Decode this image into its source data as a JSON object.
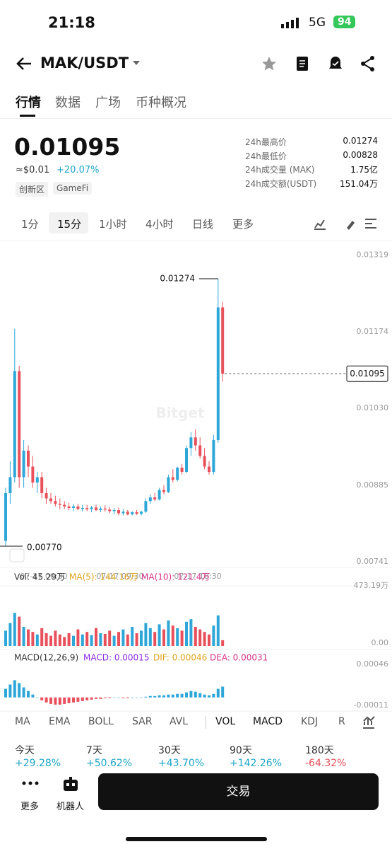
{
  "status": {
    "time": "21:18",
    "network": "5G",
    "battery": "94"
  },
  "header": {
    "pair": "MAK/USDT"
  },
  "tabs": [
    "行情",
    "数据",
    "广场",
    "币种概况"
  ],
  "price": {
    "usd": "≈$0.01",
    "change": "+20.07%",
    "tags": [
      "创新区",
      "GameFi"
    ]
  },
  "stats": [
    {
      "label": "24h最高价",
      "value": "0.01274"
    },
    {
      "label": "24h最低价",
      "value": "0.00828"
    },
    {
      "label": "24h成交量 (MAK)",
      "value": "1.75亿"
    },
    {
      "label": "24h成交额(USDT)",
      "value": "151.04万"
    }
  ],
  "intervals": [
    "1分",
    "15分",
    "1小时",
    "4小时",
    "日线",
    "更多"
  ],
  "chart_data": {
    "type": "candlestick",
    "up_color": "#2ea7d8",
    "down_color": "#e8505b",
    "last": 0.01095,
    "max": 0.01274,
    "min": {
      "value": 0.0077,
      "label": "0.00770"
    },
    "ylim": [
      0.0073,
      0.01346
    ],
    "yticks": [
      0.01319,
      0.01174,
      {
        "value": 0.0103,
        "label": "0.01030"
      },
      0.00885,
      0.00741
    ],
    "grid": false,
    "x_labels": [
      "07-17 00:30",
      "07-17 09:30",
      "07-17 18:30"
    ],
    "candles": [
      [
        0.0078,
        0.0088,
        0.0077,
        0.0087
      ],
      [
        0.0087,
        0.0093,
        0.0085,
        0.009
      ],
      [
        0.009,
        0.0118,
        0.0089,
        0.011
      ],
      [
        0.011,
        0.0111,
        0.0088,
        0.009
      ],
      [
        0.009,
        0.0097,
        0.0088,
        0.0095
      ],
      [
        0.0095,
        0.0096,
        0.009,
        0.0092
      ],
      [
        0.0092,
        0.0094,
        0.0088,
        0.0089
      ],
      [
        0.0089,
        0.0091,
        0.0087,
        0.009
      ],
      [
        0.009,
        0.0091,
        0.0086,
        0.0087
      ],
      [
        0.0087,
        0.0088,
        0.0085,
        0.0086
      ],
      [
        0.0086,
        0.0087,
        0.0085,
        0.00855
      ],
      [
        0.00855,
        0.00865,
        0.00845,
        0.0085
      ],
      [
        0.0085,
        0.0086,
        0.0084,
        0.00848
      ],
      [
        0.00848,
        0.00855,
        0.0084,
        0.00845
      ],
      [
        0.00845,
        0.00852,
        0.00838,
        0.00842
      ],
      [
        0.00842,
        0.0085,
        0.00836,
        0.00845
      ],
      [
        0.00845,
        0.0085,
        0.00838,
        0.0084
      ],
      [
        0.0084,
        0.00848,
        0.00835,
        0.00842
      ],
      [
        0.00842,
        0.00848,
        0.00836,
        0.0084
      ],
      [
        0.0084,
        0.00846,
        0.00834,
        0.00843
      ],
      [
        0.00843,
        0.00848,
        0.00836,
        0.00838
      ],
      [
        0.00838,
        0.00845,
        0.00834,
        0.00841
      ],
      [
        0.00841,
        0.00847,
        0.00835,
        0.00839
      ],
      [
        0.00839,
        0.00844,
        0.00832,
        0.00836
      ],
      [
        0.00836,
        0.00842,
        0.0083,
        0.00838
      ],
      [
        0.00838,
        0.00843,
        0.00828,
        0.00832
      ],
      [
        0.00832,
        0.0084,
        0.00828,
        0.00835
      ],
      [
        0.00835,
        0.00838,
        0.00828,
        0.0083
      ],
      [
        0.0083,
        0.00836,
        0.00828,
        0.00834
      ],
      [
        0.00834,
        0.00838,
        0.00829,
        0.00831
      ],
      [
        0.00831,
        0.00837,
        0.00828,
        0.00835
      ],
      [
        0.00835,
        0.0086,
        0.00833,
        0.00855
      ],
      [
        0.00855,
        0.00868,
        0.0085,
        0.00862
      ],
      [
        0.00862,
        0.0087,
        0.00855,
        0.00858
      ],
      [
        0.00858,
        0.0088,
        0.00856,
        0.00876
      ],
      [
        0.00876,
        0.00885,
        0.00868,
        0.00872
      ],
      [
        0.00872,
        0.00905,
        0.0087,
        0.009
      ],
      [
        0.009,
        0.00915,
        0.0089,
        0.00895
      ],
      [
        0.00895,
        0.0092,
        0.00892,
        0.00918
      ],
      [
        0.00918,
        0.00925,
        0.00905,
        0.0091
      ],
      [
        0.0091,
        0.0096,
        0.00908,
        0.00955
      ],
      [
        0.00955,
        0.00985,
        0.0094,
        0.00975
      ],
      [
        0.00975,
        0.0099,
        0.0095,
        0.0096
      ],
      [
        0.0096,
        0.00975,
        0.00935,
        0.0094
      ],
      [
        0.0094,
        0.00955,
        0.00915,
        0.0092
      ],
      [
        0.0092,
        0.0093,
        0.00905,
        0.0091
      ],
      [
        0.0091,
        0.0098,
        0.00905,
        0.0097
      ],
      [
        0.0097,
        0.01274,
        0.00965,
        0.0122
      ],
      [
        0.0122,
        0.0123,
        0.0108,
        0.01095
      ]
    ],
    "volume": {
      "legend": [
        "Vol: 45.29万",
        "MA(5): 144.16万",
        "MA(10): 121.4万"
      ],
      "ylim": [
        0,
        500
      ],
      "yticks": [
        {
          "value": 473.19,
          "label": "473.19万"
        },
        {
          "value": 0,
          "label": "0.00"
        }
      ],
      "values": [
        120,
        180,
        260,
        230,
        150,
        130,
        110,
        90,
        140,
        100,
        80,
        120,
        90,
        70,
        100,
        80,
        130,
        90,
        110,
        85,
        140,
        100,
        95,
        120,
        80,
        110,
        130,
        90,
        150,
        100,
        120,
        180,
        140,
        110,
        170,
        130,
        200,
        160,
        140,
        120,
        190,
        210,
        150,
        130,
        110,
        90,
        160,
        240,
        45.29
      ]
    },
    "macd": {
      "legend": [
        "MACD(12,26,9)",
        "MACD: 0.00015",
        "DIF: 0.00046",
        "DEA: 0.00031"
      ],
      "ylim": [
        -0.00014,
        0.0005
      ],
      "yticks": [
        0.00046,
        -0.00011
      ],
      "values": [
        0.00012,
        0.00018,
        0.00024,
        0.0002,
        0.00014,
        9e-05,
        4e-05,
        0,
        -4e-05,
        -7e-05,
        -9e-05,
        -0.0001,
        -0.0001,
        -9e-05,
        -8e-05,
        -7e-05,
        -6e-05,
        -5e-05,
        -4e-05,
        -3e-05,
        -2e-05,
        -2e-05,
        -1e-05,
        -1e-05,
        0,
        0,
        -1e-05,
        -1e-05,
        0,
        0,
        0,
        1e-05,
        2e-05,
        2e-05,
        3e-05,
        3e-05,
        4e-05,
        4e-05,
        5e-05,
        5e-05,
        7e-05,
        9e-05,
        8e-05,
        6e-05,
        4e-05,
        3e-05,
        5e-05,
        0.00012,
        0.00015
      ]
    }
  },
  "indicators": [
    "MA",
    "EMA",
    "BOLL",
    "SAR",
    "AVL",
    "VOL",
    "MACD",
    "KDJ",
    "R"
  ],
  "performance": [
    {
      "period": "今天",
      "change": "+29.28%"
    },
    {
      "period": "7天",
      "change": "+50.62%"
    },
    {
      "period": "30天",
      "change": "+43.70%"
    },
    {
      "period": "90天",
      "change": "+142.26%"
    },
    {
      "period": "180天",
      "change": "-64.32%"
    }
  ],
  "bottom": {
    "more": "更多",
    "robot": "机器人",
    "trade": "交易"
  }
}
